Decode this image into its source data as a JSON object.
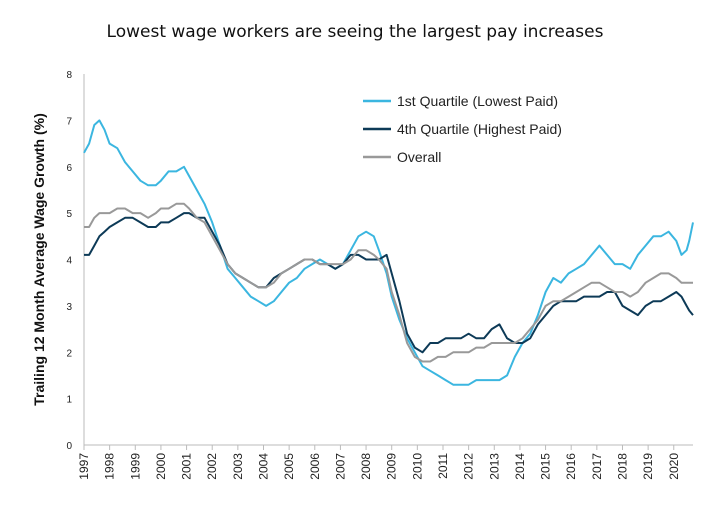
{
  "chart_data": {
    "type": "line",
    "title": "Lowest wage workers are seeing the largest pay increases",
    "ylabel": "Trailing 12 Month Average Wage Growth (%)",
    "xlabel": "",
    "ylim": [
      0,
      8
    ],
    "xlim": [
      1997.0,
      2020.75
    ],
    "y_ticks": [
      "0",
      "1",
      "2",
      "3",
      "4",
      "5",
      "6",
      "7",
      "8"
    ],
    "x_ticks": [
      "1997",
      "1998",
      "1999",
      "2000",
      "2001",
      "2002",
      "2003",
      "2004",
      "2005",
      "2006",
      "2007",
      "2008",
      "2009",
      "2010",
      "2011",
      "2012",
      "2013",
      "2014",
      "2015",
      "2016",
      "2017",
      "2018",
      "2019",
      "2020"
    ],
    "grid": false,
    "legend_position": "top-right",
    "series": [
      {
        "name": "1st Quartile (Lowest Paid)",
        "color": "#3bb6e0",
        "points": [
          [
            1997.0,
            6.3
          ],
          [
            1997.2,
            6.5
          ],
          [
            1997.4,
            6.9
          ],
          [
            1997.6,
            7.0
          ],
          [
            1997.8,
            6.8
          ],
          [
            1998.0,
            6.5
          ],
          [
            1998.3,
            6.4
          ],
          [
            1998.6,
            6.1
          ],
          [
            1998.9,
            5.9
          ],
          [
            1999.2,
            5.7
          ],
          [
            1999.5,
            5.6
          ],
          [
            1999.8,
            5.6
          ],
          [
            2000.0,
            5.7
          ],
          [
            2000.3,
            5.9
          ],
          [
            2000.6,
            5.9
          ],
          [
            2000.9,
            6.0
          ],
          [
            2001.1,
            5.8
          ],
          [
            2001.4,
            5.5
          ],
          [
            2001.7,
            5.2
          ],
          [
            2002.0,
            4.8
          ],
          [
            2002.3,
            4.3
          ],
          [
            2002.6,
            3.8
          ],
          [
            2002.9,
            3.6
          ],
          [
            2003.2,
            3.4
          ],
          [
            2003.5,
            3.2
          ],
          [
            2003.8,
            3.1
          ],
          [
            2004.1,
            3.0
          ],
          [
            2004.4,
            3.1
          ],
          [
            2004.7,
            3.3
          ],
          [
            2005.0,
            3.5
          ],
          [
            2005.3,
            3.6
          ],
          [
            2005.6,
            3.8
          ],
          [
            2005.9,
            3.9
          ],
          [
            2006.2,
            4.0
          ],
          [
            2006.5,
            3.9
          ],
          [
            2006.8,
            3.8
          ],
          [
            2007.1,
            3.9
          ],
          [
            2007.4,
            4.2
          ],
          [
            2007.7,
            4.5
          ],
          [
            2008.0,
            4.6
          ],
          [
            2008.3,
            4.5
          ],
          [
            2008.5,
            4.2
          ],
          [
            2008.8,
            3.7
          ],
          [
            2009.0,
            3.2
          ],
          [
            2009.3,
            2.7
          ],
          [
            2009.6,
            2.3
          ],
          [
            2009.9,
            2.0
          ],
          [
            2010.2,
            1.7
          ],
          [
            2010.5,
            1.6
          ],
          [
            2010.8,
            1.5
          ],
          [
            2011.1,
            1.4
          ],
          [
            2011.4,
            1.3
          ],
          [
            2011.7,
            1.3
          ],
          [
            2012.0,
            1.3
          ],
          [
            2012.3,
            1.4
          ],
          [
            2012.6,
            1.4
          ],
          [
            2012.9,
            1.4
          ],
          [
            2013.2,
            1.4
          ],
          [
            2013.5,
            1.5
          ],
          [
            2013.8,
            1.9
          ],
          [
            2014.1,
            2.2
          ],
          [
            2014.4,
            2.4
          ],
          [
            2014.7,
            2.8
          ],
          [
            2015.0,
            3.3
          ],
          [
            2015.3,
            3.6
          ],
          [
            2015.6,
            3.5
          ],
          [
            2015.9,
            3.7
          ],
          [
            2016.2,
            3.8
          ],
          [
            2016.5,
            3.9
          ],
          [
            2016.8,
            4.1
          ],
          [
            2017.1,
            4.3
          ],
          [
            2017.4,
            4.1
          ],
          [
            2017.7,
            3.9
          ],
          [
            2018.0,
            3.9
          ],
          [
            2018.3,
            3.8
          ],
          [
            2018.6,
            4.1
          ],
          [
            2018.9,
            4.3
          ],
          [
            2019.2,
            4.5
          ],
          [
            2019.5,
            4.5
          ],
          [
            2019.8,
            4.6
          ],
          [
            2020.1,
            4.4
          ],
          [
            2020.3,
            4.1
          ],
          [
            2020.5,
            4.2
          ],
          [
            2020.6,
            4.4
          ],
          [
            2020.75,
            4.8
          ]
        ]
      },
      {
        "name": "4th Quartile (Highest Paid)",
        "color": "#0d3a57",
        "points": [
          [
            1997.0,
            4.1
          ],
          [
            1997.2,
            4.1
          ],
          [
            1997.4,
            4.3
          ],
          [
            1997.6,
            4.5
          ],
          [
            1997.8,
            4.6
          ],
          [
            1998.0,
            4.7
          ],
          [
            1998.3,
            4.8
          ],
          [
            1998.6,
            4.9
          ],
          [
            1998.9,
            4.9
          ],
          [
            1999.2,
            4.8
          ],
          [
            1999.5,
            4.7
          ],
          [
            1999.8,
            4.7
          ],
          [
            2000.0,
            4.8
          ],
          [
            2000.3,
            4.8
          ],
          [
            2000.6,
            4.9
          ],
          [
            2000.9,
            5.0
          ],
          [
            2001.1,
            5.0
          ],
          [
            2001.4,
            4.9
          ],
          [
            2001.7,
            4.9
          ],
          [
            2002.0,
            4.6
          ],
          [
            2002.3,
            4.3
          ],
          [
            2002.6,
            3.9
          ],
          [
            2002.9,
            3.7
          ],
          [
            2003.2,
            3.6
          ],
          [
            2003.5,
            3.5
          ],
          [
            2003.8,
            3.4
          ],
          [
            2004.1,
            3.4
          ],
          [
            2004.4,
            3.6
          ],
          [
            2004.7,
            3.7
          ],
          [
            2005.0,
            3.8
          ],
          [
            2005.3,
            3.9
          ],
          [
            2005.6,
            4.0
          ],
          [
            2005.9,
            4.0
          ],
          [
            2006.2,
            3.9
          ],
          [
            2006.5,
            3.9
          ],
          [
            2006.8,
            3.8
          ],
          [
            2007.1,
            3.9
          ],
          [
            2007.4,
            4.1
          ],
          [
            2007.7,
            4.1
          ],
          [
            2008.0,
            4.0
          ],
          [
            2008.3,
            4.0
          ],
          [
            2008.5,
            4.0
          ],
          [
            2008.8,
            4.1
          ],
          [
            2009.0,
            3.7
          ],
          [
            2009.3,
            3.1
          ],
          [
            2009.6,
            2.4
          ],
          [
            2009.9,
            2.1
          ],
          [
            2010.2,
            2.0
          ],
          [
            2010.5,
            2.2
          ],
          [
            2010.8,
            2.2
          ],
          [
            2011.1,
            2.3
          ],
          [
            2011.4,
            2.3
          ],
          [
            2011.7,
            2.3
          ],
          [
            2012.0,
            2.4
          ],
          [
            2012.3,
            2.3
          ],
          [
            2012.6,
            2.3
          ],
          [
            2012.9,
            2.5
          ],
          [
            2013.2,
            2.6
          ],
          [
            2013.5,
            2.3
          ],
          [
            2013.8,
            2.2
          ],
          [
            2014.1,
            2.2
          ],
          [
            2014.4,
            2.3
          ],
          [
            2014.7,
            2.6
          ],
          [
            2015.0,
            2.8
          ],
          [
            2015.3,
            3.0
          ],
          [
            2015.6,
            3.1
          ],
          [
            2015.9,
            3.1
          ],
          [
            2016.2,
            3.1
          ],
          [
            2016.5,
            3.2
          ],
          [
            2016.8,
            3.2
          ],
          [
            2017.1,
            3.2
          ],
          [
            2017.4,
            3.3
          ],
          [
            2017.7,
            3.3
          ],
          [
            2018.0,
            3.0
          ],
          [
            2018.3,
            2.9
          ],
          [
            2018.6,
            2.8
          ],
          [
            2018.9,
            3.0
          ],
          [
            2019.2,
            3.1
          ],
          [
            2019.5,
            3.1
          ],
          [
            2019.8,
            3.2
          ],
          [
            2020.1,
            3.3
          ],
          [
            2020.3,
            3.2
          ],
          [
            2020.5,
            3.0
          ],
          [
            2020.6,
            2.9
          ],
          [
            2020.75,
            2.8
          ]
        ]
      },
      {
        "name": "Overall",
        "color": "#999999",
        "points": [
          [
            1997.0,
            4.7
          ],
          [
            1997.2,
            4.7
          ],
          [
            1997.4,
            4.9
          ],
          [
            1997.6,
            5.0
          ],
          [
            1997.8,
            5.0
          ],
          [
            1998.0,
            5.0
          ],
          [
            1998.3,
            5.1
          ],
          [
            1998.6,
            5.1
          ],
          [
            1998.9,
            5.0
          ],
          [
            1999.2,
            5.0
          ],
          [
            1999.5,
            4.9
          ],
          [
            1999.8,
            5.0
          ],
          [
            2000.0,
            5.1
          ],
          [
            2000.3,
            5.1
          ],
          [
            2000.6,
            5.2
          ],
          [
            2000.9,
            5.2
          ],
          [
            2001.1,
            5.1
          ],
          [
            2001.4,
            4.9
          ],
          [
            2001.7,
            4.8
          ],
          [
            2002.0,
            4.5
          ],
          [
            2002.3,
            4.2
          ],
          [
            2002.6,
            3.9
          ],
          [
            2002.9,
            3.7
          ],
          [
            2003.2,
            3.6
          ],
          [
            2003.5,
            3.5
          ],
          [
            2003.8,
            3.4
          ],
          [
            2004.1,
            3.4
          ],
          [
            2004.4,
            3.5
          ],
          [
            2004.7,
            3.7
          ],
          [
            2005.0,
            3.8
          ],
          [
            2005.3,
            3.9
          ],
          [
            2005.6,
            4.0
          ],
          [
            2005.9,
            4.0
          ],
          [
            2006.2,
            3.9
          ],
          [
            2006.5,
            3.9
          ],
          [
            2006.8,
            3.9
          ],
          [
            2007.1,
            3.9
          ],
          [
            2007.4,
            4.0
          ],
          [
            2007.7,
            4.2
          ],
          [
            2008.0,
            4.2
          ],
          [
            2008.3,
            4.1
          ],
          [
            2008.5,
            4.0
          ],
          [
            2008.8,
            3.8
          ],
          [
            2009.0,
            3.3
          ],
          [
            2009.3,
            2.8
          ],
          [
            2009.6,
            2.2
          ],
          [
            2009.9,
            1.9
          ],
          [
            2010.2,
            1.8
          ],
          [
            2010.5,
            1.8
          ],
          [
            2010.8,
            1.9
          ],
          [
            2011.1,
            1.9
          ],
          [
            2011.4,
            2.0
          ],
          [
            2011.7,
            2.0
          ],
          [
            2012.0,
            2.0
          ],
          [
            2012.3,
            2.1
          ],
          [
            2012.6,
            2.1
          ],
          [
            2012.9,
            2.2
          ],
          [
            2013.2,
            2.2
          ],
          [
            2013.5,
            2.2
          ],
          [
            2013.8,
            2.2
          ],
          [
            2014.1,
            2.3
          ],
          [
            2014.4,
            2.5
          ],
          [
            2014.7,
            2.7
          ],
          [
            2015.0,
            3.0
          ],
          [
            2015.3,
            3.1
          ],
          [
            2015.6,
            3.1
          ],
          [
            2015.9,
            3.2
          ],
          [
            2016.2,
            3.3
          ],
          [
            2016.5,
            3.4
          ],
          [
            2016.8,
            3.5
          ],
          [
            2017.1,
            3.5
          ],
          [
            2017.4,
            3.4
          ],
          [
            2017.7,
            3.3
          ],
          [
            2018.0,
            3.3
          ],
          [
            2018.3,
            3.2
          ],
          [
            2018.6,
            3.3
          ],
          [
            2018.9,
            3.5
          ],
          [
            2019.2,
            3.6
          ],
          [
            2019.5,
            3.7
          ],
          [
            2019.8,
            3.7
          ],
          [
            2020.1,
            3.6
          ],
          [
            2020.3,
            3.5
          ],
          [
            2020.5,
            3.5
          ],
          [
            2020.6,
            3.5
          ],
          [
            2020.75,
            3.5
          ]
        ]
      }
    ]
  }
}
